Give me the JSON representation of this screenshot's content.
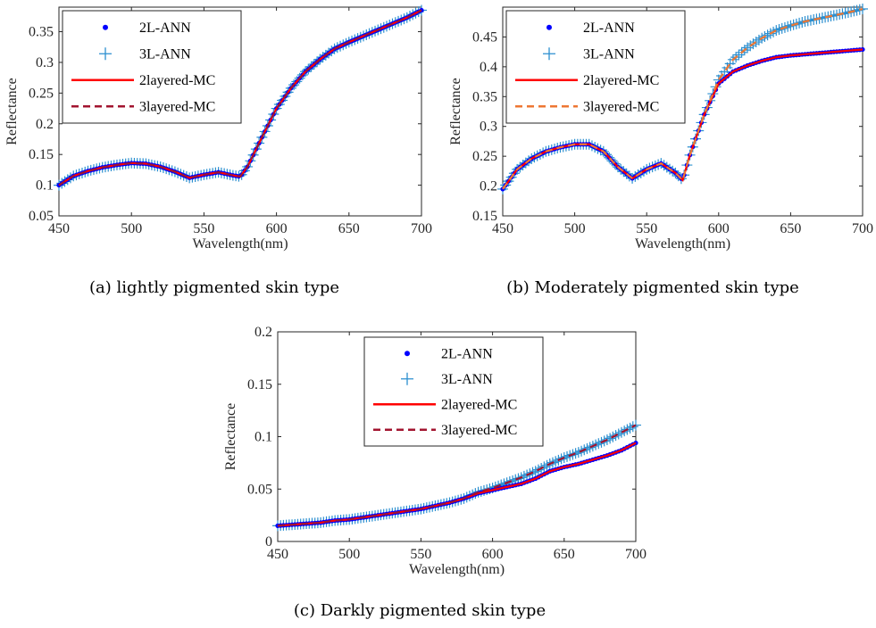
{
  "colors": {
    "ann2": "#0000ff",
    "ann3": "#2b8fd0",
    "mc2": "#ff0000",
    "mc3_a": "#a2142f",
    "mc3_b": "#ee7733",
    "mc3_c": "#a2142f",
    "axis": "#262626"
  },
  "chart_data": [
    {
      "type": "line",
      "caption": "(a)  lightly pigmented skin type",
      "xlabel": "Wavelength(nm)",
      "ylabel": "Reflectance",
      "xlim": [
        450,
        700
      ],
      "ylim": [
        0.05,
        0.39
      ],
      "xticks": [
        "450",
        "500",
        "550",
        "600",
        "650",
        "700"
      ],
      "yticks": [
        "0.05",
        "0.1",
        "0.15",
        "0.2",
        "0.25",
        "0.3",
        "0.35"
      ],
      "legend_position": "top-left",
      "x": [
        450,
        460,
        470,
        480,
        490,
        500,
        510,
        520,
        530,
        540,
        550,
        560,
        570,
        575,
        580,
        590,
        600,
        610,
        620,
        630,
        640,
        650,
        660,
        670,
        680,
        690,
        700
      ],
      "series": [
        {
          "name": "2L-ANN",
          "style": "dot",
          "values": [
            0.1,
            0.115,
            0.123,
            0.129,
            0.133,
            0.136,
            0.135,
            0.13,
            0.122,
            0.112,
            0.117,
            0.121,
            0.116,
            0.114,
            0.13,
            0.178,
            0.225,
            0.258,
            0.285,
            0.305,
            0.322,
            0.333,
            0.343,
            0.353,
            0.363,
            0.373,
            0.385
          ]
        },
        {
          "name": "3L-ANN",
          "style": "plus",
          "values": [
            0.1,
            0.115,
            0.123,
            0.129,
            0.133,
            0.136,
            0.135,
            0.13,
            0.122,
            0.112,
            0.117,
            0.121,
            0.116,
            0.114,
            0.13,
            0.178,
            0.225,
            0.258,
            0.285,
            0.305,
            0.322,
            0.333,
            0.343,
            0.353,
            0.363,
            0.373,
            0.385
          ]
        },
        {
          "name": "2layered-MC",
          "style": "solid",
          "values": [
            0.1,
            0.115,
            0.123,
            0.129,
            0.133,
            0.136,
            0.135,
            0.13,
            0.122,
            0.112,
            0.117,
            0.121,
            0.116,
            0.114,
            0.13,
            0.178,
            0.225,
            0.258,
            0.285,
            0.305,
            0.322,
            0.333,
            0.343,
            0.353,
            0.363,
            0.373,
            0.385
          ]
        },
        {
          "name": "3layered-MC",
          "style": "dashed",
          "values": [
            0.1,
            0.115,
            0.123,
            0.129,
            0.133,
            0.136,
            0.135,
            0.13,
            0.122,
            0.112,
            0.117,
            0.121,
            0.116,
            0.114,
            0.13,
            0.178,
            0.225,
            0.258,
            0.285,
            0.305,
            0.322,
            0.333,
            0.343,
            0.353,
            0.363,
            0.373,
            0.385
          ]
        }
      ]
    },
    {
      "type": "line",
      "caption": "(b)  Moderately pigmented skin type",
      "xlabel": "Wavelength(nm)",
      "ylabel": "Reflectance",
      "xlim": [
        450,
        700
      ],
      "ylim": [
        0.15,
        0.5
      ],
      "xticks": [
        "450",
        "500",
        "550",
        "600",
        "650",
        "700"
      ],
      "yticks": [
        "0.15",
        "0.2",
        "0.25",
        "0.3",
        "0.35",
        "0.4",
        "0.45"
      ],
      "legend_position": "top-left",
      "x": [
        450,
        460,
        470,
        480,
        490,
        500,
        510,
        520,
        530,
        540,
        550,
        560,
        570,
        575,
        580,
        590,
        600,
        610,
        620,
        630,
        640,
        650,
        660,
        670,
        680,
        690,
        700
      ],
      "series": [
        {
          "name": "2L-ANN",
          "style": "dot",
          "values": [
            0.195,
            0.228,
            0.246,
            0.258,
            0.265,
            0.27,
            0.27,
            0.258,
            0.232,
            0.213,
            0.228,
            0.238,
            0.222,
            0.21,
            0.252,
            0.32,
            0.372,
            0.392,
            0.402,
            0.41,
            0.416,
            0.419,
            0.421,
            0.423,
            0.425,
            0.427,
            0.429
          ]
        },
        {
          "name": "3L-ANN",
          "style": "plus",
          "values": [
            0.195,
            0.228,
            0.246,
            0.258,
            0.265,
            0.27,
            0.27,
            0.258,
            0.232,
            0.213,
            0.228,
            0.238,
            0.222,
            0.21,
            0.252,
            0.32,
            0.378,
            0.412,
            0.432,
            0.448,
            0.461,
            0.469,
            0.476,
            0.481,
            0.486,
            0.491,
            0.497
          ]
        },
        {
          "name": "2layered-MC",
          "style": "solid",
          "values": [
            0.195,
            0.228,
            0.246,
            0.258,
            0.265,
            0.27,
            0.27,
            0.258,
            0.232,
            0.213,
            0.228,
            0.238,
            0.222,
            0.21,
            0.252,
            0.32,
            0.372,
            0.392,
            0.402,
            0.41,
            0.416,
            0.419,
            0.421,
            0.423,
            0.425,
            0.427,
            0.429
          ]
        },
        {
          "name": "3layered-MC",
          "style": "dashed",
          "values": [
            0.195,
            0.228,
            0.246,
            0.258,
            0.265,
            0.27,
            0.27,
            0.258,
            0.232,
            0.213,
            0.228,
            0.238,
            0.222,
            0.21,
            0.252,
            0.32,
            0.378,
            0.412,
            0.432,
            0.448,
            0.461,
            0.469,
            0.476,
            0.481,
            0.486,
            0.491,
            0.497
          ]
        }
      ]
    },
    {
      "type": "line",
      "caption": "(c)  Darkly pigmented skin type",
      "xlabel": "Wavelength(nm)",
      "ylabel": "Reflectance",
      "xlim": [
        450,
        700
      ],
      "ylim": [
        0,
        0.2
      ],
      "xticks": [
        "450",
        "500",
        "550",
        "600",
        "650",
        "700"
      ],
      "yticks": [
        "0",
        "0.05",
        "0.1",
        "0.15",
        "0.2"
      ],
      "legend_position": "top-center",
      "x": [
        450,
        460,
        470,
        480,
        490,
        500,
        510,
        520,
        530,
        540,
        550,
        560,
        570,
        580,
        590,
        600,
        610,
        620,
        630,
        640,
        650,
        660,
        670,
        680,
        690,
        700
      ],
      "series": [
        {
          "name": "2L-ANN",
          "style": "dot",
          "values": [
            0.015,
            0.016,
            0.017,
            0.018,
            0.02,
            0.021,
            0.023,
            0.025,
            0.027,
            0.029,
            0.031,
            0.034,
            0.037,
            0.041,
            0.046,
            0.049,
            0.052,
            0.055,
            0.06,
            0.067,
            0.071,
            0.074,
            0.078,
            0.082,
            0.087,
            0.094
          ]
        },
        {
          "name": "3L-ANN",
          "style": "plus",
          "values": [
            0.015,
            0.016,
            0.017,
            0.018,
            0.02,
            0.021,
            0.023,
            0.025,
            0.027,
            0.029,
            0.031,
            0.034,
            0.037,
            0.041,
            0.047,
            0.051,
            0.056,
            0.061,
            0.067,
            0.074,
            0.08,
            0.085,
            0.091,
            0.097,
            0.104,
            0.111
          ]
        },
        {
          "name": "2layered-MC",
          "style": "solid",
          "values": [
            0.015,
            0.016,
            0.017,
            0.018,
            0.02,
            0.021,
            0.023,
            0.025,
            0.027,
            0.029,
            0.031,
            0.034,
            0.037,
            0.041,
            0.046,
            0.049,
            0.052,
            0.055,
            0.06,
            0.067,
            0.071,
            0.074,
            0.078,
            0.082,
            0.087,
            0.094
          ]
        },
        {
          "name": "3layered-MC",
          "style": "dashed",
          "values": [
            0.015,
            0.016,
            0.017,
            0.018,
            0.02,
            0.021,
            0.023,
            0.025,
            0.027,
            0.029,
            0.031,
            0.034,
            0.037,
            0.041,
            0.047,
            0.051,
            0.056,
            0.061,
            0.067,
            0.074,
            0.08,
            0.085,
            0.091,
            0.097,
            0.104,
            0.111
          ]
        }
      ]
    }
  ]
}
